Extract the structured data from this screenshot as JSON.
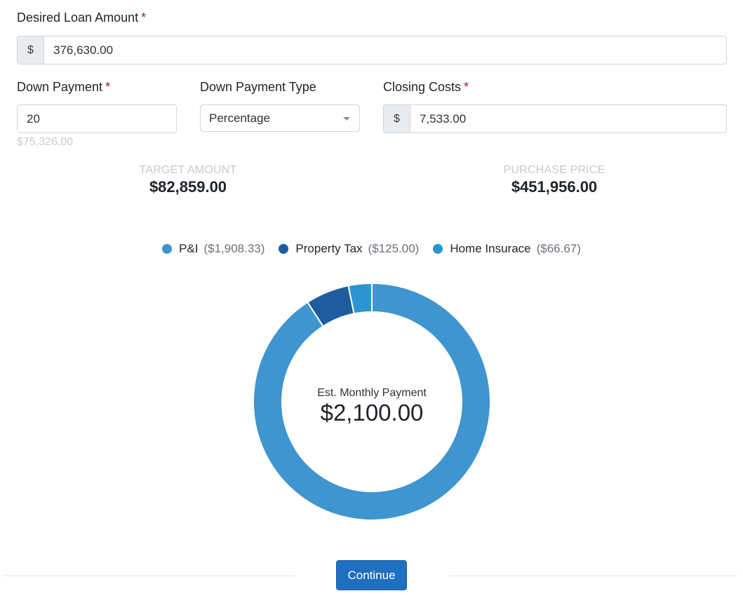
{
  "loan": {
    "label": "Desired Loan Amount",
    "required_mark": "*",
    "currency": "$",
    "value": "376,630.00"
  },
  "down_payment": {
    "label": "Down Payment",
    "required_mark": "*",
    "value": "20",
    "unit": "%",
    "computed": "$75,326.00"
  },
  "down_payment_type": {
    "label": "Down Payment Type",
    "selected": "Percentage"
  },
  "closing_costs": {
    "label": "Closing Costs",
    "required_mark": "*",
    "currency": "$",
    "value": "7,533.00"
  },
  "target_amount": {
    "label": "TARGET AMOUNT",
    "value": "$82,859.00"
  },
  "purchase_price": {
    "label": "PURCHASE PRICE",
    "value": "$451,956.00"
  },
  "chart_data": {
    "type": "pie",
    "series": [
      {
        "name": "P&I",
        "label": "($1,908.33)",
        "value": 1908.33,
        "color": "#3f95cf"
      },
      {
        "name": "Property Tax",
        "label": "($125.00)",
        "value": 125.0,
        "color": "#1f5c9e"
      },
      {
        "name": "Home Insurace",
        "label": "($66.67)",
        "value": 66.67,
        "color": "#2b95d2"
      }
    ],
    "center_label": "Est. Monthly Payment",
    "center_value": "$2,100.00"
  },
  "actions": {
    "continue_label": "Continue"
  },
  "colors": {
    "primary": "#1f6fc0",
    "required": "#9b1c1c"
  }
}
